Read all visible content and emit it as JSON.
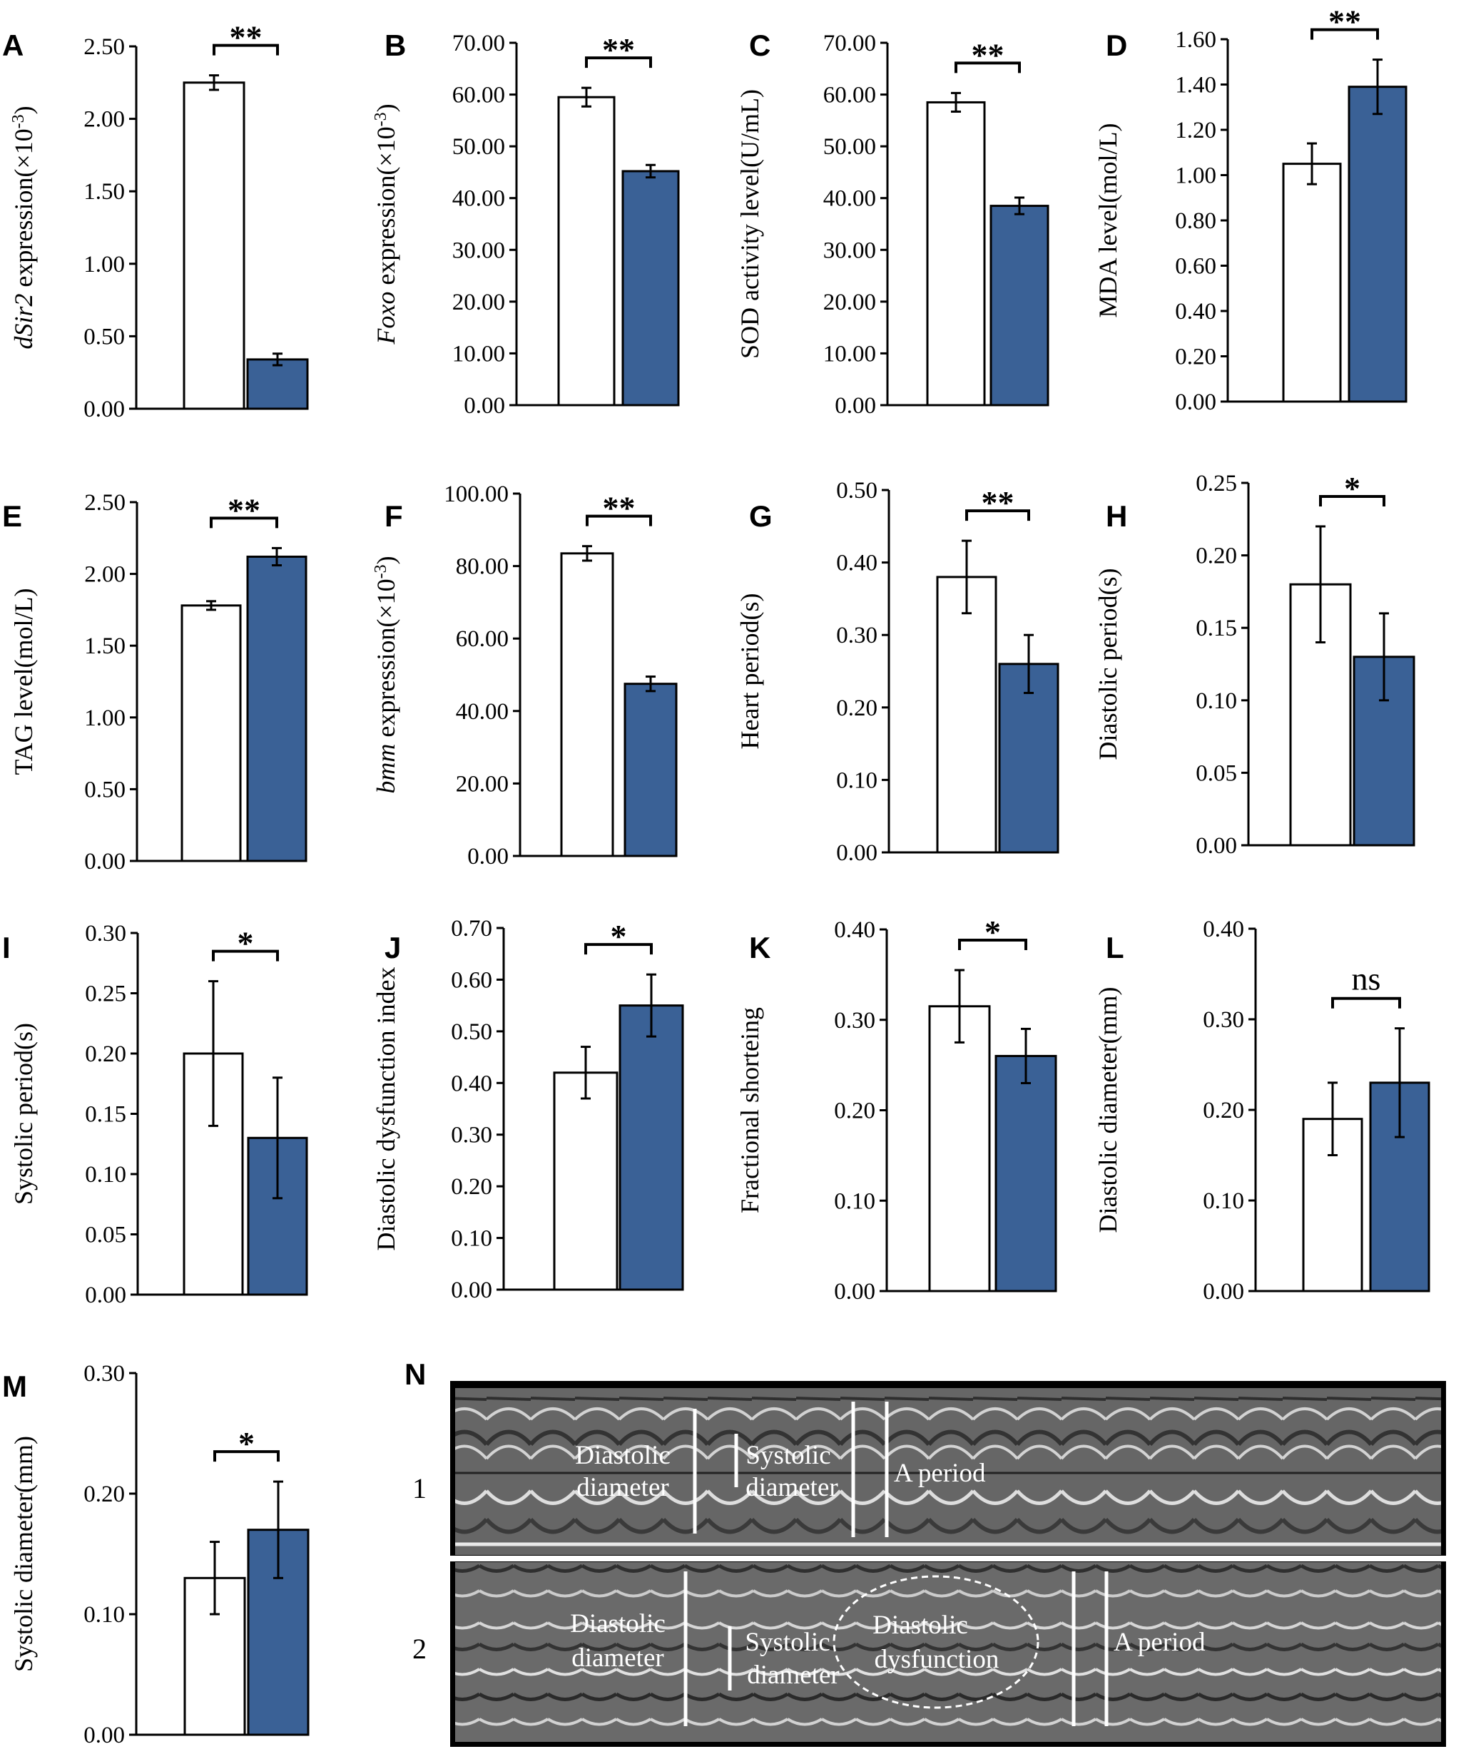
{
  "colors": {
    "control": "#ffffff",
    "treatment": "#3a6196",
    "axis": "#000000"
  },
  "chart_data": [
    {
      "panel": "A",
      "type": "bar",
      "ylabel_italic": "dSir2",
      "ylabel_rest": " expression(×10",
      "ylabel_sup": "-3",
      "ylabel_close": ")",
      "ylim": [
        0,
        2.5
      ],
      "ticks": [
        "0.00",
        "0.50",
        "1.00",
        "1.50",
        "2.00",
        "2.50"
      ],
      "values": [
        2.25,
        0.34
      ],
      "errors": [
        0.05,
        0.04
      ],
      "sig": "**"
    },
    {
      "panel": "B",
      "type": "bar",
      "ylabel_italic": "Foxo",
      "ylabel_rest": " expression(×10",
      "ylabel_sup": "-3",
      "ylabel_close": ")",
      "ylim": [
        0,
        70
      ],
      "ticks": [
        "0.00",
        "10.00",
        "20.00",
        "30.00",
        "40.00",
        "50.00",
        "60.00",
        "70.00"
      ],
      "values": [
        59.5,
        45.2
      ],
      "errors": [
        1.8,
        1.2
      ],
      "sig": "**"
    },
    {
      "panel": "C",
      "type": "bar",
      "ylabel_italic": "",
      "ylabel_rest": "SOD activity level(U/mL)",
      "ylabel_sup": "",
      "ylabel_close": "",
      "ylim": [
        0,
        70
      ],
      "ticks": [
        "0.00",
        "10.00",
        "20.00",
        "30.00",
        "40.00",
        "50.00",
        "60.00",
        "70.00"
      ],
      "values": [
        58.5,
        38.5
      ],
      "errors": [
        1.8,
        1.6
      ],
      "sig": "**"
    },
    {
      "panel": "D",
      "type": "bar",
      "ylabel_italic": "",
      "ylabel_rest": "MDA level(mol/L)",
      "ylabel_sup": "",
      "ylabel_close": "",
      "ylim": [
        0,
        1.6
      ],
      "ticks": [
        "0.00",
        "0.20",
        "0.40",
        "0.60",
        "0.80",
        "1.00",
        "1.20",
        "1.40",
        "1.60"
      ],
      "values": [
        1.05,
        1.39
      ],
      "errors": [
        0.09,
        0.12
      ],
      "sig": "**"
    },
    {
      "panel": "E",
      "type": "bar",
      "ylabel_italic": "",
      "ylabel_rest": "TAG level(mol/L)",
      "ylabel_sup": "",
      "ylabel_close": "",
      "ylim": [
        0,
        2.5
      ],
      "ticks": [
        "0.00",
        "0.50",
        "1.00",
        "1.50",
        "2.00",
        "2.50"
      ],
      "values": [
        1.78,
        2.12
      ],
      "errors": [
        0.03,
        0.06
      ],
      "sig": "**"
    },
    {
      "panel": "F",
      "type": "bar",
      "ylabel_italic": "bmm",
      "ylabel_rest": " expression(×10",
      "ylabel_sup": "-3",
      "ylabel_close": ")",
      "ylim": [
        0,
        100
      ],
      "ticks": [
        "0.00",
        "20.00",
        "40.00",
        "60.00",
        "80.00",
        "100.00"
      ],
      "values": [
        83.5,
        47.5
      ],
      "errors": [
        2.0,
        2.0
      ],
      "sig": "**"
    },
    {
      "panel": "G",
      "type": "bar",
      "ylabel_italic": "",
      "ylabel_rest": "Heart period(s)",
      "ylabel_sup": "",
      "ylabel_close": "",
      "ylim": [
        0,
        0.5
      ],
      "ticks": [
        "0.00",
        "0.10",
        "0.20",
        "0.30",
        "0.40",
        "0.50"
      ],
      "values": [
        0.38,
        0.26
      ],
      "errors": [
        0.05,
        0.04
      ],
      "sig": "**"
    },
    {
      "panel": "H",
      "type": "bar",
      "ylabel_italic": "",
      "ylabel_rest": "Diastolic period(s)",
      "ylabel_sup": "",
      "ylabel_close": "",
      "ylim": [
        0,
        0.25
      ],
      "ticks": [
        "0.00",
        "0.05",
        "0.10",
        "0.15",
        "0.20",
        "0.25"
      ],
      "values": [
        0.18,
        0.13
      ],
      "errors": [
        0.04,
        0.03
      ],
      "sig": "*"
    },
    {
      "panel": "I",
      "type": "bar",
      "ylabel_italic": "",
      "ylabel_rest": "Systolic period(s)",
      "ylabel_sup": "",
      "ylabel_close": "",
      "ylim": [
        0,
        0.3
      ],
      "ticks": [
        "0.00",
        "0.05",
        "0.10",
        "0.15",
        "0.20",
        "0.25",
        "0.30"
      ],
      "values": [
        0.2,
        0.13
      ],
      "errors": [
        0.06,
        0.05
      ],
      "sig": "*"
    },
    {
      "panel": "J",
      "type": "bar",
      "ylabel_italic": "",
      "ylabel_rest": "Diastolic dysfunction index",
      "ylabel_sup": "",
      "ylabel_close": "",
      "ylim": [
        0,
        0.7
      ],
      "ticks": [
        "0.00",
        "0.10",
        "0.20",
        "0.30",
        "0.40",
        "0.50",
        "0.60",
        "0.70"
      ],
      "values": [
        0.42,
        0.55
      ],
      "errors": [
        0.05,
        0.06
      ],
      "sig": "*"
    },
    {
      "panel": "K",
      "type": "bar",
      "ylabel_italic": "",
      "ylabel_rest": "Fractional shorteing",
      "ylabel_sup": "",
      "ylabel_close": "",
      "ylim": [
        0,
        0.4
      ],
      "ticks": [
        "0.00",
        "0.10",
        "0.20",
        "0.30",
        "0.40"
      ],
      "values": [
        0.315,
        0.26
      ],
      "errors": [
        0.04,
        0.03
      ],
      "sig": "*"
    },
    {
      "panel": "L",
      "type": "bar",
      "ylabel_italic": "",
      "ylabel_rest": "Diastolic diameter(mm)",
      "ylabel_sup": "",
      "ylabel_close": "",
      "ylim": [
        0,
        0.4
      ],
      "ticks": [
        "0.00",
        "0.10",
        "0.20",
        "0.30",
        "0.40"
      ],
      "values": [
        0.19,
        0.23
      ],
      "errors": [
        0.04,
        0.06
      ],
      "sig": "ns"
    },
    {
      "panel": "M",
      "type": "bar",
      "ylabel_italic": "",
      "ylabel_rest": "Systolic diameter(mm)",
      "ylabel_sup": "",
      "ylabel_close": "",
      "ylim": [
        0,
        0.3
      ],
      "ticks": [
        "0.00",
        "0.10",
        "0.20",
        "0.30"
      ],
      "values": [
        0.13,
        0.17
      ],
      "errors": [
        0.03,
        0.04
      ],
      "sig": "*"
    }
  ],
  "kymograph": {
    "panel": "N",
    "rows": [
      {
        "row_label": "1",
        "labels": {
          "diastolic_1": "Diastolic",
          "diastolic_2": "diameter",
          "systolic_1": "Systolic",
          "systolic_2": "diameter",
          "a_period": "A period"
        }
      },
      {
        "row_label": "2",
        "labels": {
          "diastolic_1": "Diastolic",
          "diastolic_2": "diameter",
          "systolic_1": "Systolic",
          "systolic_2": "diameter",
          "dysfunction_1": "Diastolic",
          "dysfunction_2": "dysfunction",
          "a_period": "A period"
        }
      }
    ]
  }
}
